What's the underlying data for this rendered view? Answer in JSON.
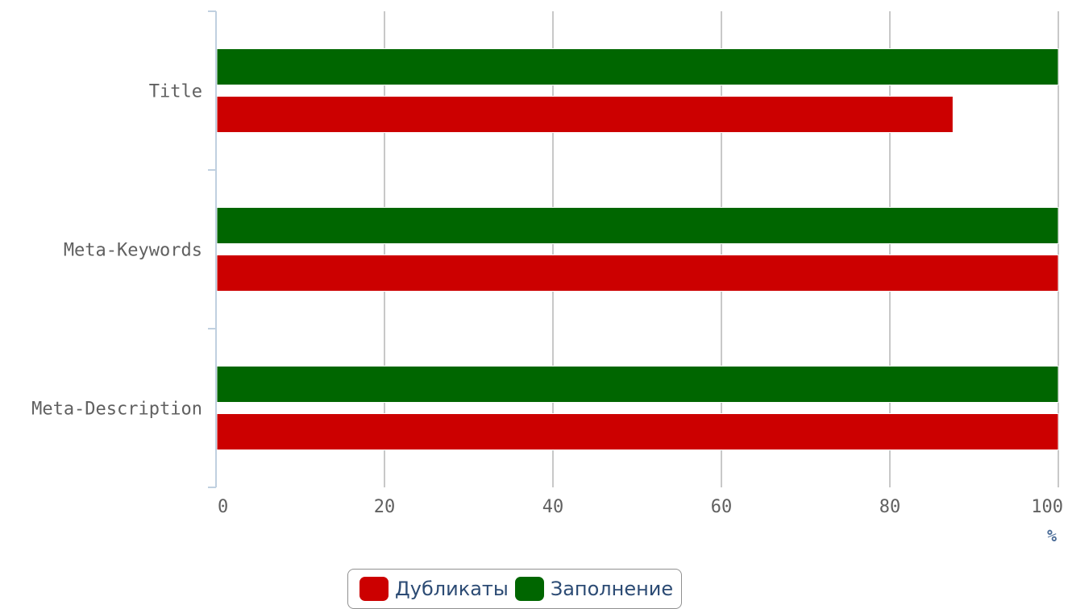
{
  "chart_data": {
    "type": "bar",
    "orientation": "horizontal",
    "categories": [
      "Title",
      "Meta-Keywords",
      "Meta-Description"
    ],
    "series": [
      {
        "name": "Заполнение",
        "color": "#006600",
        "values": [
          100,
          100,
          100
        ]
      },
      {
        "name": "Дубликаты",
        "color": "#cc0000",
        "values": [
          87.5,
          100,
          100
        ]
      }
    ],
    "xlim": [
      0,
      100
    ],
    "xticks": [
      0,
      20,
      40,
      60,
      80,
      100
    ],
    "xlabel": "%",
    "grid": true,
    "legend_position": "bottom-center"
  },
  "legend": [
    {
      "label": "Дубликаты",
      "color": "#cc0000"
    },
    {
      "label": "Заполнение",
      "color": "#006600"
    }
  ]
}
